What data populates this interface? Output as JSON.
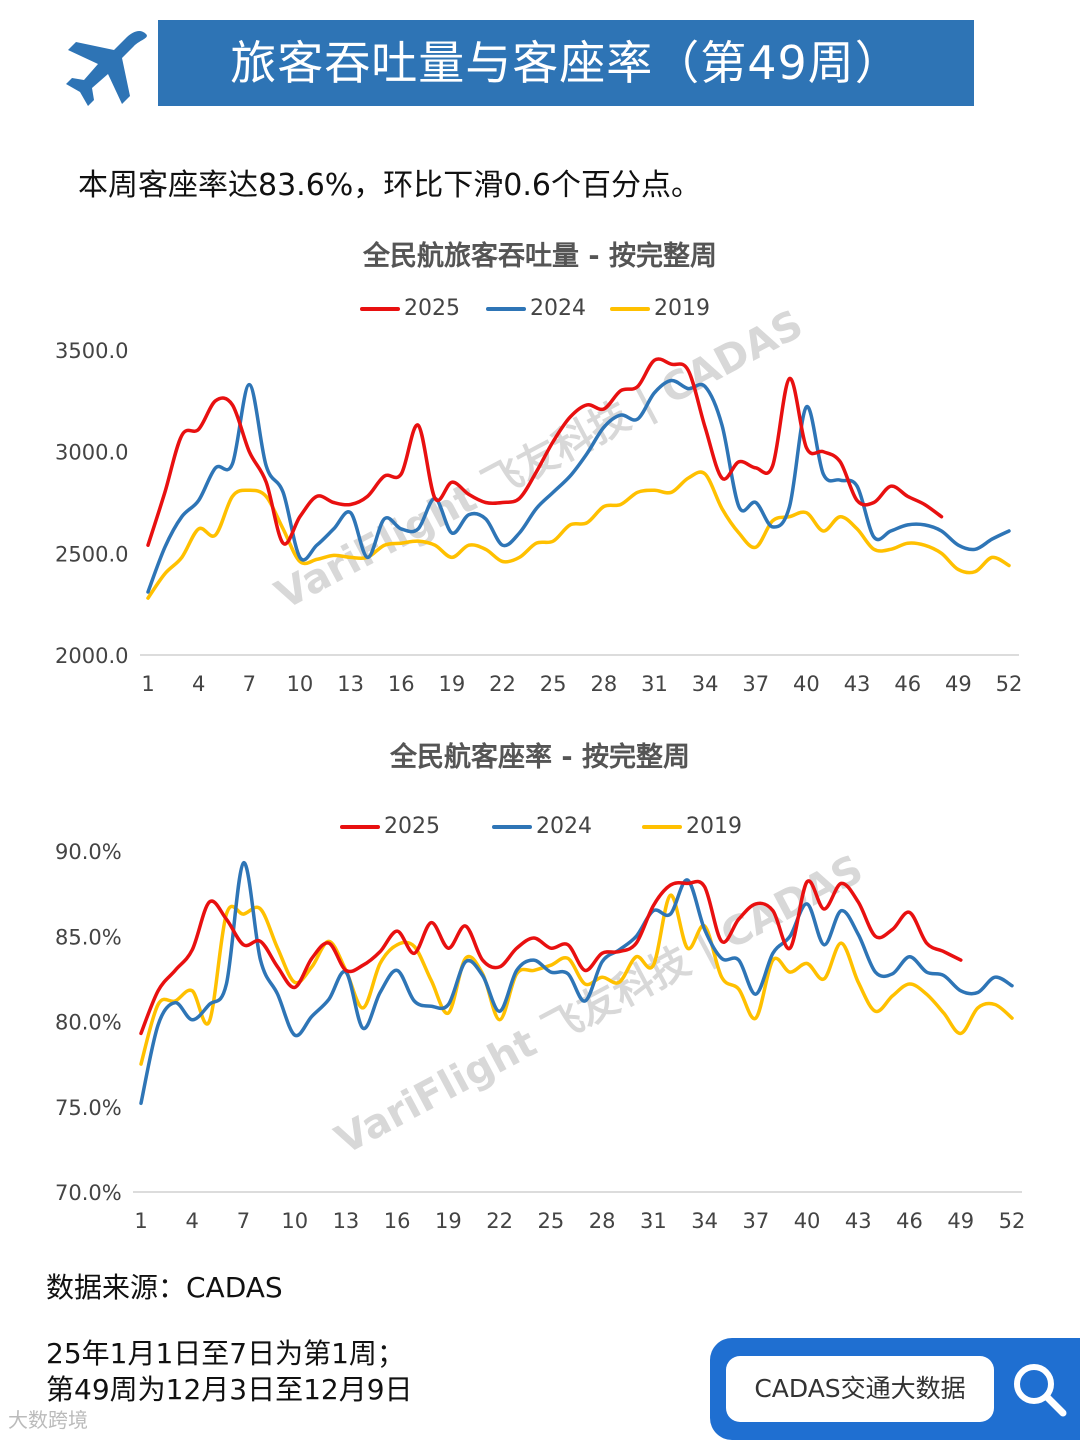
{
  "header": {
    "title": "旅客吞吐量与客座率（第49周）"
  },
  "subtitle": "本周客座率达83.6%，环比下滑0.6个百分点。",
  "colors": {
    "header_bg": "#2e74b5",
    "s2025": "#e81010",
    "s2024": "#2e75b6",
    "s2019": "#ffc000"
  },
  "chart_data": [
    {
      "type": "line",
      "title": "全民航旅客吞吐量 - 按完整周",
      "xlabel": "",
      "ylabel": "",
      "ylim": [
        2000,
        3500
      ],
      "yticks": [
        "3500.0",
        "3000.0",
        "2500.0",
        "2000.0"
      ],
      "ytick_values": [
        3500,
        3000,
        2500,
        2000
      ],
      "xticks": [
        "1",
        "4",
        "7",
        "10",
        "13",
        "16",
        "19",
        "22",
        "25",
        "28",
        "31",
        "34",
        "37",
        "40",
        "43",
        "46",
        "49",
        "52"
      ],
      "legend_position": "top-center",
      "watermark": "VariFlight 飞友科技 | CADAS",
      "series": [
        {
          "name": "2025",
          "values": [
            2540,
            2800,
            3080,
            3110,
            3250,
            3230,
            3000,
            2850,
            2550,
            2680,
            2780,
            2750,
            2740,
            2780,
            2880,
            2890,
            3130,
            2770,
            2850,
            2790,
            2750,
            2750,
            2770,
            2900,
            3050,
            3170,
            3230,
            3210,
            3300,
            3320,
            3450,
            3430,
            3400,
            3120,
            2870,
            2950,
            2920,
            2930,
            3360,
            3020,
            3000,
            2950,
            2760,
            2750,
            2830,
            2780,
            2740,
            2680
          ]
        },
        {
          "name": "2024",
          "values": [
            2310,
            2530,
            2680,
            2760,
            2920,
            2940,
            3330,
            2930,
            2800,
            2480,
            2540,
            2620,
            2700,
            2480,
            2670,
            2620,
            2620,
            2770,
            2600,
            2690,
            2670,
            2540,
            2600,
            2720,
            2800,
            2880,
            2990,
            3120,
            3180,
            3160,
            3290,
            3350,
            3310,
            3320,
            3130,
            2730,
            2750,
            2630,
            2730,
            3220,
            2890,
            2860,
            2830,
            2580,
            2610,
            2640,
            2640,
            2610,
            2540,
            2520,
            2570,
            2610
          ]
        },
        {
          "name": "2019",
          "values": [
            2280,
            2400,
            2480,
            2620,
            2590,
            2780,
            2810,
            2780,
            2620,
            2460,
            2470,
            2490,
            2480,
            2480,
            2540,
            2550,
            2560,
            2540,
            2480,
            2540,
            2520,
            2460,
            2480,
            2550,
            2560,
            2640,
            2650,
            2730,
            2740,
            2800,
            2810,
            2800,
            2870,
            2890,
            2720,
            2600,
            2530,
            2660,
            2680,
            2700,
            2610,
            2680,
            2620,
            2520,
            2520,
            2550,
            2540,
            2500,
            2420,
            2410,
            2480,
            2440
          ]
        }
      ]
    },
    {
      "type": "line",
      "title": "全民航客座率 - 按完整周",
      "xlabel": "",
      "ylabel": "",
      "ylim": [
        70.0,
        90.0
      ],
      "yticks": [
        "90.0%",
        "85.0%",
        "80.0%",
        "75.0%",
        "70.0%"
      ],
      "ytick_values": [
        90,
        85,
        80,
        75,
        70
      ],
      "xticks": [
        "1",
        "4",
        "7",
        "10",
        "13",
        "16",
        "19",
        "22",
        "25",
        "28",
        "31",
        "34",
        "37",
        "40",
        "43",
        "46",
        "49",
        "52"
      ],
      "legend_position": "top-center",
      "watermark": "VariFlight 飞友科技 | CADAS",
      "series": [
        {
          "name": "2025",
          "values": [
            79.3,
            81.8,
            83.0,
            84.2,
            87.0,
            86.0,
            84.5,
            84.7,
            83.2,
            82.0,
            83.7,
            84.6,
            83.0,
            83.3,
            84.1,
            85.3,
            84.0,
            85.8,
            84.3,
            85.6,
            83.6,
            83.2,
            84.3,
            84.9,
            84.3,
            84.5,
            83.0,
            84.0,
            84.1,
            84.6,
            86.8,
            88.0,
            88.1,
            87.9,
            84.7,
            86.0,
            86.9,
            86.5,
            84.3,
            88.2,
            86.6,
            88.1,
            87.0,
            85.0,
            85.4,
            86.4,
            84.6,
            84.1,
            83.6
          ]
        },
        {
          "name": "2024",
          "values": [
            75.2,
            79.8,
            81.1,
            80.1,
            81.0,
            82.2,
            89.3,
            83.6,
            81.6,
            79.2,
            80.3,
            81.3,
            82.9,
            79.6,
            81.7,
            83.0,
            81.2,
            80.9,
            81.0,
            83.5,
            82.7,
            80.6,
            83.0,
            83.6,
            82.9,
            82.8,
            81.2,
            83.5,
            84.2,
            85.0,
            86.5,
            86.3,
            88.3,
            85.4,
            83.7,
            83.6,
            81.6,
            84.0,
            85.0,
            86.9,
            84.5,
            86.5,
            85.1,
            82.9,
            82.8,
            83.8,
            82.9,
            82.7,
            81.8,
            81.7,
            82.6,
            82.1
          ]
        },
        {
          "name": "2019",
          "values": [
            77.5,
            81.0,
            81.2,
            81.8,
            80.0,
            86.3,
            86.3,
            86.6,
            84.3,
            82.3,
            83.2,
            84.7,
            83.0,
            80.8,
            83.4,
            84.5,
            84.4,
            82.4,
            80.5,
            83.7,
            82.8,
            80.1,
            82.8,
            83.0,
            83.3,
            83.7,
            82.2,
            82.6,
            82.3,
            83.8,
            83.3,
            87.4,
            84.3,
            85.6,
            82.6,
            81.9,
            80.2,
            83.6,
            82.9,
            83.4,
            82.5,
            84.6,
            82.3,
            80.6,
            81.5,
            82.2,
            81.6,
            80.5,
            79.3,
            80.8,
            81.0,
            80.2
          ]
        }
      ]
    }
  ],
  "source": "数据来源：CADAS",
  "note_line1": "25年1月1日至7日为第1周；",
  "note_line2": "第49周为12月3日至12月9日",
  "search": {
    "text": "CADAS交通大数据",
    "icon": "search-icon"
  },
  "brand": "大数跨境"
}
